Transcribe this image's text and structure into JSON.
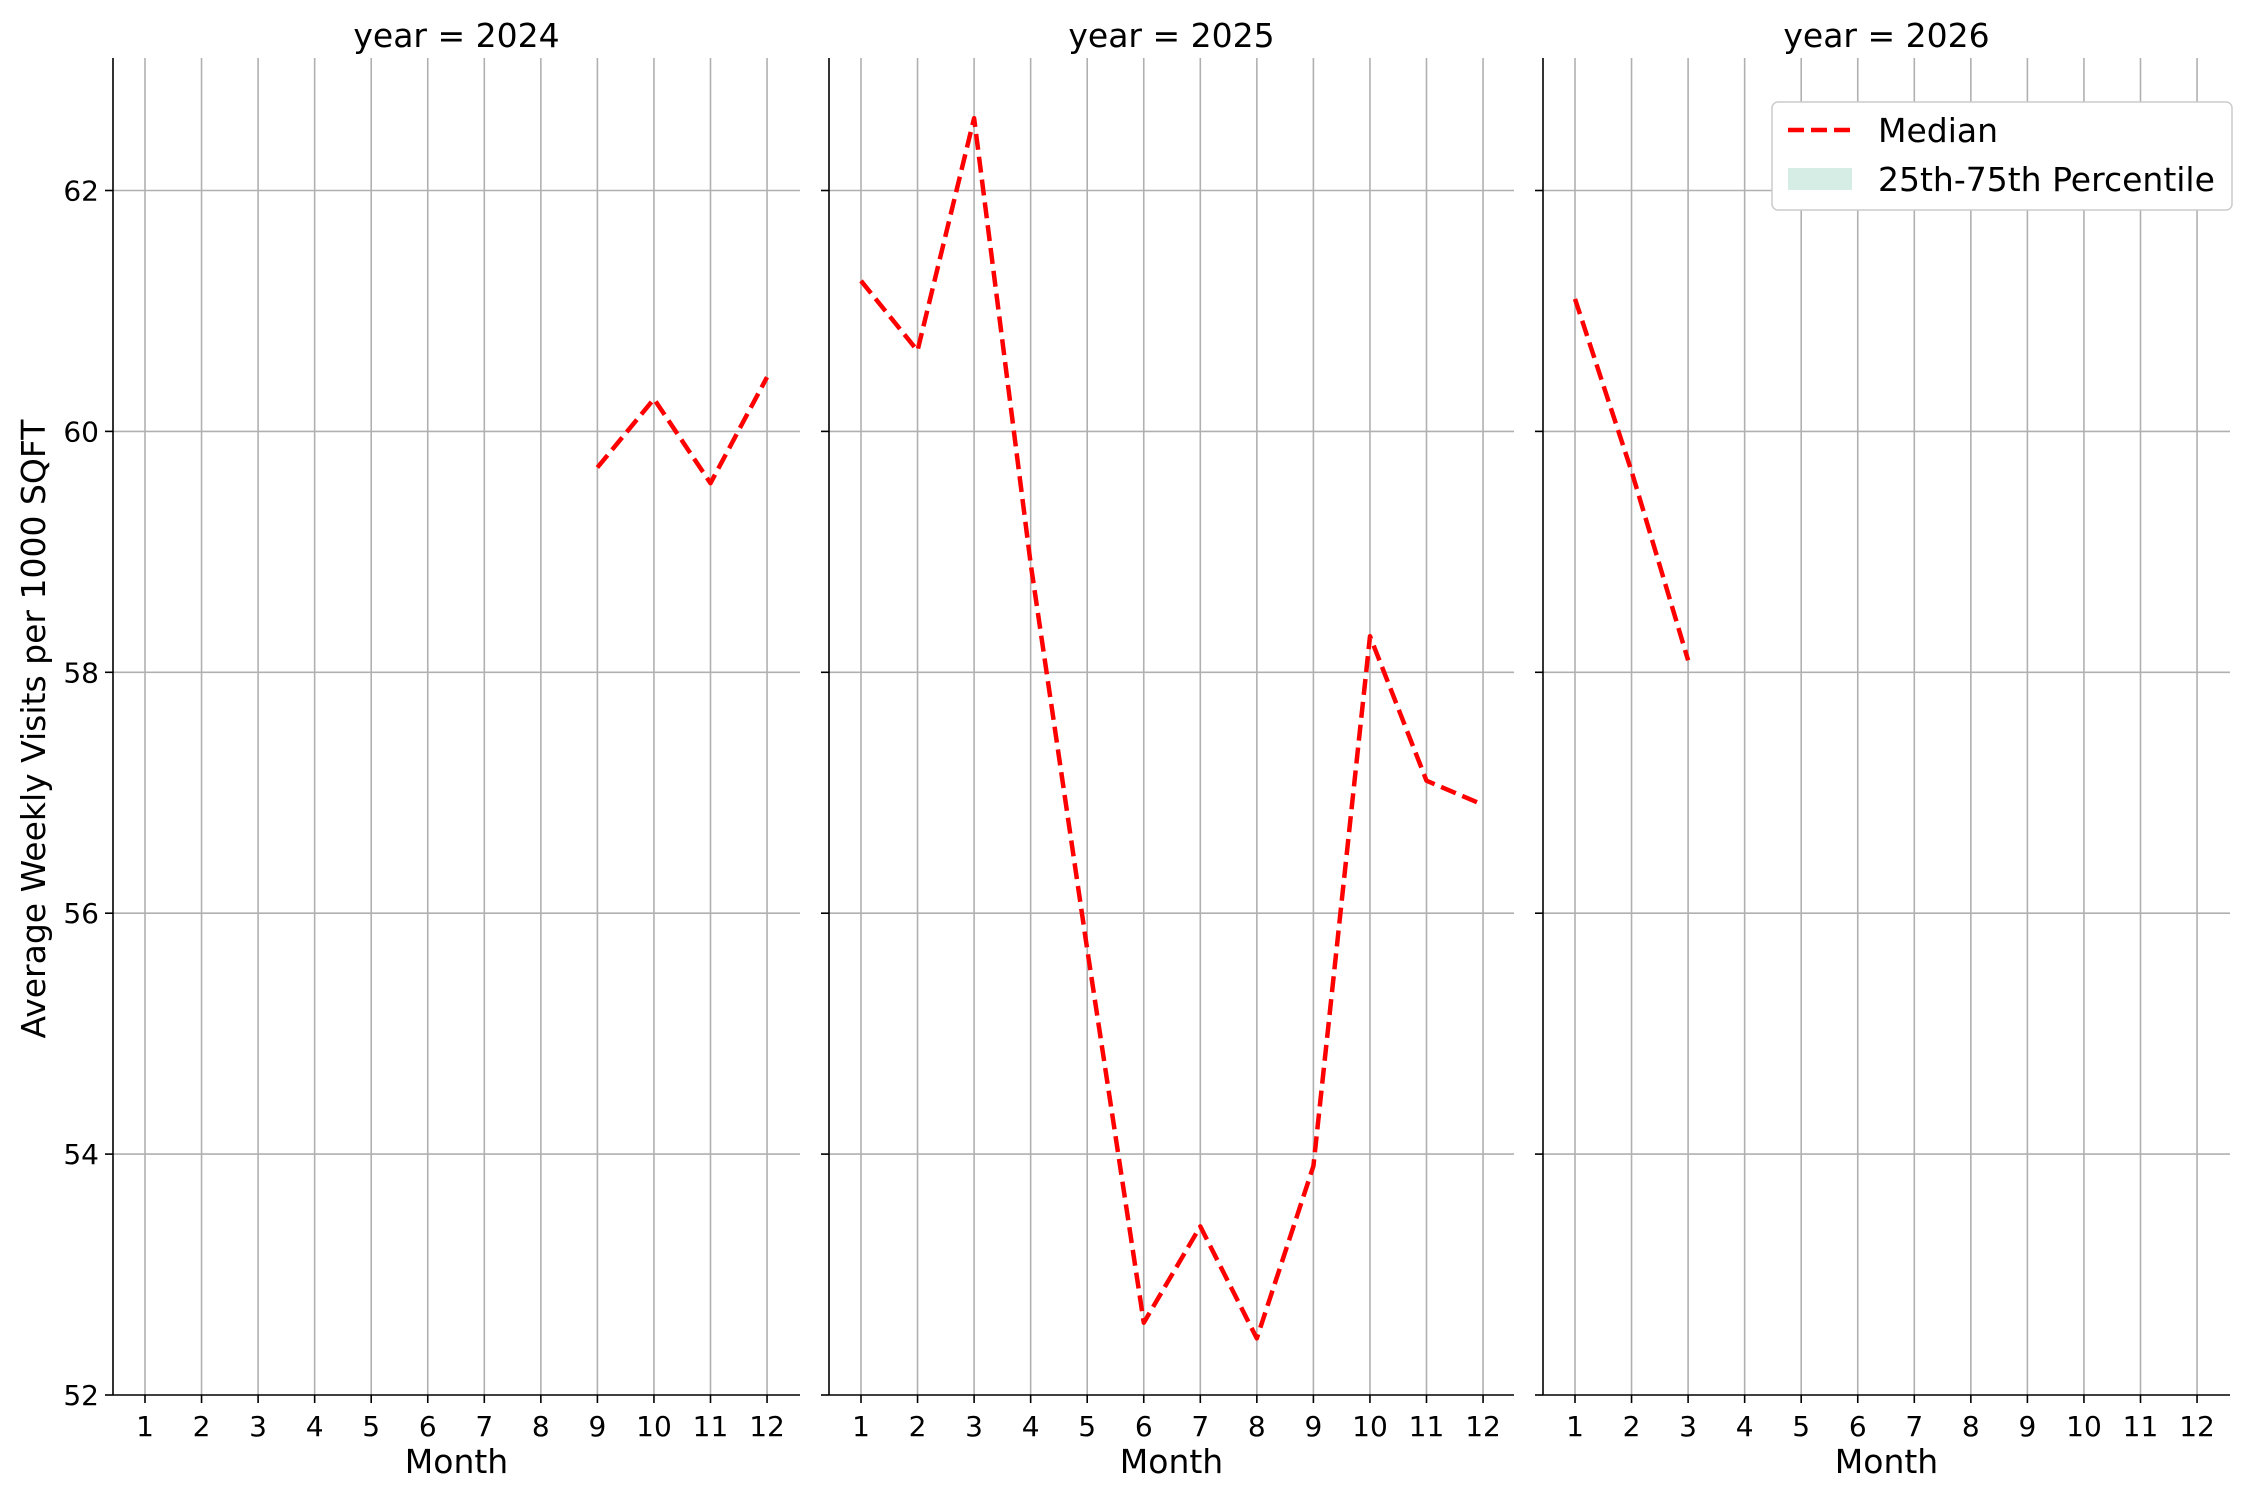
{
  "chart_data": {
    "type": "line",
    "ylabel": "Average Weekly Visits per 1000 SQFT",
    "xlabel": "Month",
    "ylim": [
      52,
      63.1
    ],
    "yticks": [
      52,
      54,
      56,
      58,
      60,
      62
    ],
    "xticks": [
      1,
      2,
      3,
      4,
      5,
      6,
      7,
      8,
      9,
      10,
      11,
      12
    ],
    "grid": true,
    "legend": {
      "placement": "top-right",
      "entries": [
        {
          "label": "Median",
          "color": "#ff0000",
          "style": "dashed"
        },
        {
          "label": "25th-75th Percentile",
          "color": "#d6ede6",
          "style": "fill"
        }
      ]
    },
    "panels": [
      {
        "title": "year = 2024",
        "series": [
          {
            "name": "Median",
            "x": [
              9,
              10,
              11,
              12
            ],
            "y": [
              59.7,
              60.27,
              59.57,
              60.45
            ]
          }
        ]
      },
      {
        "title": "year = 2025",
        "series": [
          {
            "name": "Median",
            "x": [
              1,
              2,
              3,
              4,
              5,
              6,
              7,
              8,
              9,
              10,
              11,
              12
            ],
            "y": [
              61.25,
              60.67,
              62.6,
              58.9,
              55.7,
              52.6,
              53.4,
              52.47,
              53.9,
              58.3,
              57.1,
              56.9
            ]
          }
        ]
      },
      {
        "title": "year = 2026",
        "series": [
          {
            "name": "Median",
            "x": [
              1,
              2,
              3
            ],
            "y": [
              61.1,
              59.67,
              58.1
            ]
          }
        ]
      }
    ]
  }
}
